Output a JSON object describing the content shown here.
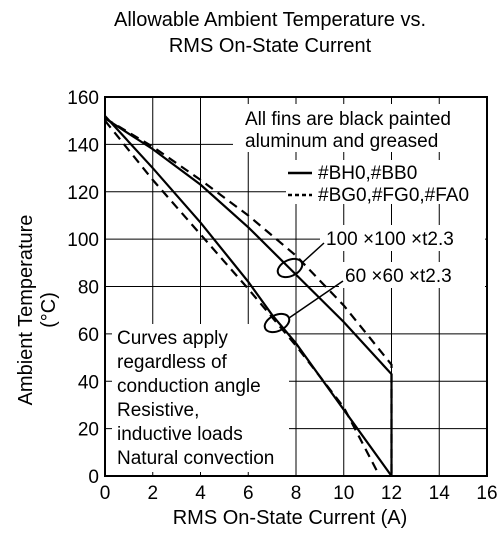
{
  "chart_data": {
    "type": "line",
    "title_line1": "Allowable Ambient Temperature vs.",
    "title_line2": "RMS On-State Current",
    "xlabel": "RMS On-State Current  (A)",
    "ylabel": "Ambient Temperature  (°C)",
    "xlim": [
      0,
      16
    ],
    "ylim": [
      0,
      160
    ],
    "xticks": [
      0,
      2,
      4,
      6,
      8,
      10,
      12,
      14,
      16
    ],
    "yticks": [
      0,
      20,
      40,
      60,
      80,
      100,
      120,
      140,
      160
    ],
    "grid": true,
    "legend": [
      {
        "label": "#BH0,#BB0",
        "style": "solid"
      },
      {
        "label": "#BG0,#FG0,#FA0",
        "style": "dashed"
      }
    ],
    "notes": {
      "fins_line1": "All fins are black painted",
      "fins_line2": "aluminum and greased",
      "size_large": "100 ×100 ×t2.3",
      "size_small": "60 ×60 ×t2.3",
      "conditions": [
        "Curves apply",
        "regardless of",
        "conduction angle",
        "Resistive,",
        "inductive loads",
        "Natural convection"
      ]
    },
    "series": [
      {
        "style": "solid",
        "group": "100x100",
        "x": [
          0,
          2,
          4,
          6,
          8,
          10,
          12,
          12
        ],
        "y": [
          151,
          138,
          123,
          105,
          85,
          65,
          43,
          0
        ]
      },
      {
        "style": "dashed",
        "group": "100x100",
        "x": [
          0,
          2,
          4,
          6,
          8,
          10,
          12,
          12
        ],
        "y": [
          151,
          139,
          125,
          110,
          93,
          72,
          47,
          0
        ]
      },
      {
        "style": "solid",
        "group": "60x60",
        "x": [
          0,
          2,
          4,
          6,
          7,
          8,
          10,
          12
        ],
        "y": [
          152,
          130,
          107,
          82,
          68,
          56,
          28,
          0
        ]
      },
      {
        "style": "dashed",
        "group": "60x60",
        "x": [
          0,
          2,
          4,
          6,
          8,
          10,
          11.5
        ],
        "y": [
          150,
          125,
          102,
          79,
          55,
          29,
          0
        ]
      }
    ]
  }
}
